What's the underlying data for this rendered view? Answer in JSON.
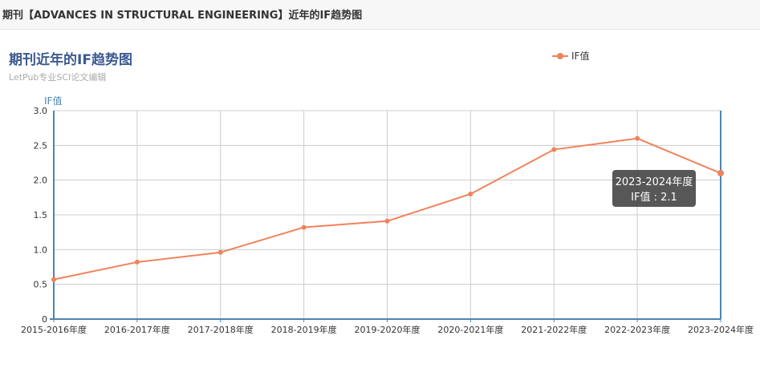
{
  "header": {
    "title": "期刊【ADVANCES IN STRUCTURAL ENGINEERING】近年的IF趋势图"
  },
  "chart_data": {
    "type": "line",
    "title": "期刊近年的IF趋势图",
    "subtitle": "LetPub专业SCI论文编辑",
    "ylabel": "IF值",
    "xlabel": "",
    "categories": [
      "2015-2016年度",
      "2016-2017年度",
      "2017-2018年度",
      "2018-2019年度",
      "2019-2020年度",
      "2020-2021年度",
      "2021-2022年度",
      "2022-2023年度",
      "2023-2024年度"
    ],
    "series": [
      {
        "name": "IF值",
        "values": [
          0.57,
          0.82,
          0.96,
          1.32,
          1.41,
          1.8,
          2.44,
          2.6,
          2.1
        ]
      }
    ],
    "yticks": [
      "0",
      "0.5",
      "1.0",
      "1.5",
      "2.0",
      "2.5",
      "3.0"
    ],
    "ylim": [
      0,
      3.0
    ],
    "grid": true,
    "legend_position": "top-right",
    "color": "#f0825a",
    "tooltip": {
      "category": "2023-2024年度",
      "series": "IF值",
      "value": "2.1"
    }
  }
}
